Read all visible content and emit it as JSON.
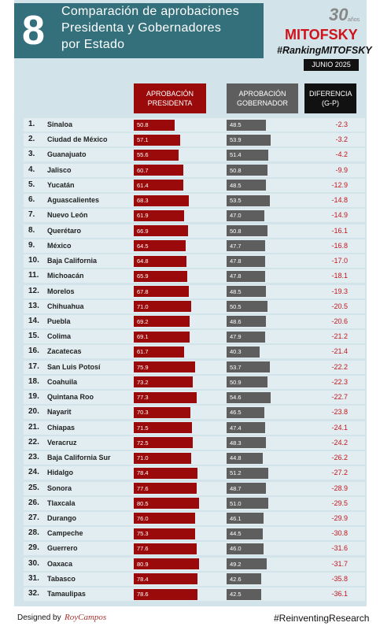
{
  "chart_data": {
    "type": "bar",
    "badge": "8",
    "title_lines": [
      "Comparación de aprobaciones",
      "Presidenta y Gobernadores",
      "por Estado"
    ],
    "logo_number": "30",
    "logo_text": "años",
    "brand": "MITOFSKY",
    "hashtag": "#RankingMITOFSKY",
    "date": "JUNIO 2025",
    "ranks": [
      "1.",
      "2.",
      "3.",
      "4.",
      "5.",
      "6.",
      "7.",
      "8.",
      "9.",
      "10.",
      "11.",
      "12.",
      "13.",
      "14.",
      "15.",
      "16.",
      "17.",
      "18.",
      "19.",
      "20.",
      "21.",
      "22.",
      "23.",
      "24.",
      "25.",
      "26.",
      "27.",
      "28.",
      "29.",
      "30.",
      "31.",
      "32."
    ],
    "categories": [
      "Sinaloa",
      "Ciudad de México",
      "Guanajuato",
      "Jalisco",
      "Yucatán",
      "Aguascalientes",
      "Nuevo León",
      "Querétaro",
      "México",
      "Baja California",
      "Michoacán",
      "Morelos",
      "Chihuahua",
      "Puebla",
      "Colima",
      "Zacatecas",
      "San Luis Potosí",
      "Coahuila",
      "Quintana Roo",
      "Nayarit",
      "Chiapas",
      "Veracruz",
      "Baja California Sur",
      "Hidalgo",
      "Sonora",
      "Tlaxcala",
      "Durango",
      "Campeche",
      "Guerrero",
      "Oaxaca",
      "Tabasco",
      "Tamaulipas"
    ],
    "series": [
      {
        "name": "APROBACIÓN PRESIDENTA",
        "color": "#9b0a0a",
        "values": [
          50.8,
          57.1,
          55.6,
          60.7,
          61.4,
          68.3,
          61.9,
          66.9,
          64.5,
          64.8,
          65.9,
          67.8,
          71.0,
          69.2,
          69.1,
          61.7,
          75.9,
          73.2,
          77.3,
          70.3,
          71.5,
          72.5,
          71.0,
          78.4,
          77.6,
          80.5,
          76.0,
          75.3,
          77.6,
          80.9,
          78.4,
          78.6
        ],
        "value_labels": [
          "50.8",
          "57.1",
          "55.6",
          "60.7",
          "61.4",
          "68.3",
          "61.9",
          "66.9",
          "64.5",
          "64.8",
          "65.9",
          "67.8",
          "71.0",
          "69.2",
          "69.1",
          "61.7",
          "75.9",
          "73.2",
          "77.3",
          "70.3",
          "71.5",
          "72.5",
          "71.0",
          "78.4",
          "77.6",
          "80.5",
          "76.0",
          "75.3",
          "77.6",
          "80.9",
          "78.4",
          "78.6"
        ]
      },
      {
        "name": "APROBACIÓN GOBERNADOR",
        "color": "#5e5e5e",
        "values": [
          48.5,
          53.9,
          51.4,
          50.8,
          48.5,
          53.5,
          47.0,
          50.8,
          47.7,
          47.8,
          47.8,
          48.5,
          50.5,
          48.6,
          47.9,
          40.3,
          53.7,
          50.9,
          54.6,
          46.5,
          47.4,
          48.3,
          44.8,
          51.2,
          48.7,
          51.0,
          46.1,
          44.5,
          46.0,
          49.2,
          42.6,
          42.5
        ],
        "value_labels": [
          "48.5",
          "53.9",
          "51.4",
          "50.8",
          "48.5",
          "53.5",
          "47.0",
          "50.8",
          "47.7",
          "47.8",
          "47.8",
          "48.5",
          "50.5",
          "48.6",
          "47.9",
          "40.3",
          "53.7",
          "50.9",
          "54.6",
          "46.5",
          "47.4",
          "48.3",
          "44.8",
          "51.2",
          "48.7",
          "51.0",
          "46.1",
          "44.5",
          "46.0",
          "49.2",
          "42.6",
          "42.5"
        ]
      },
      {
        "name": "DIFERENCIA (G-P)",
        "color": "#c4161c",
        "values": [
          -2.3,
          -3.2,
          -4.2,
          -9.9,
          -12.9,
          -14.8,
          -14.9,
          -16.1,
          -16.8,
          -17.0,
          -18.1,
          -19.3,
          -20.5,
          -20.6,
          -21.2,
          -21.4,
          -22.2,
          -22.3,
          -22.7,
          -23.8,
          -24.1,
          -24.2,
          -26.2,
          -27.2,
          -28.9,
          -29.5,
          -29.9,
          -30.8,
          -31.6,
          -31.7,
          -35.8,
          -36.1
        ],
        "value_labels": [
          "-2.3",
          "-3.2",
          "-4.2",
          "-9.9",
          "-12.9",
          "-14.8",
          "-14.9",
          "-16.1",
          "-16.8",
          "-17.0",
          "-18.1",
          "-19.3",
          "-20.5",
          "-20.6",
          "-21.2",
          "-21.4",
          "-22.2",
          "-22.3",
          "-22.7",
          "-23.8",
          "-24.1",
          "-24.2",
          "-26.2",
          "-27.2",
          "-28.9",
          "-29.5",
          "-29.9",
          "-30.8",
          "-31.6",
          "-31.7",
          "-35.8",
          "-36.1"
        ]
      }
    ],
    "footer_left": "Designed by",
    "signature": "RoyCampos",
    "footer_right": "#ReinventingResearch"
  }
}
